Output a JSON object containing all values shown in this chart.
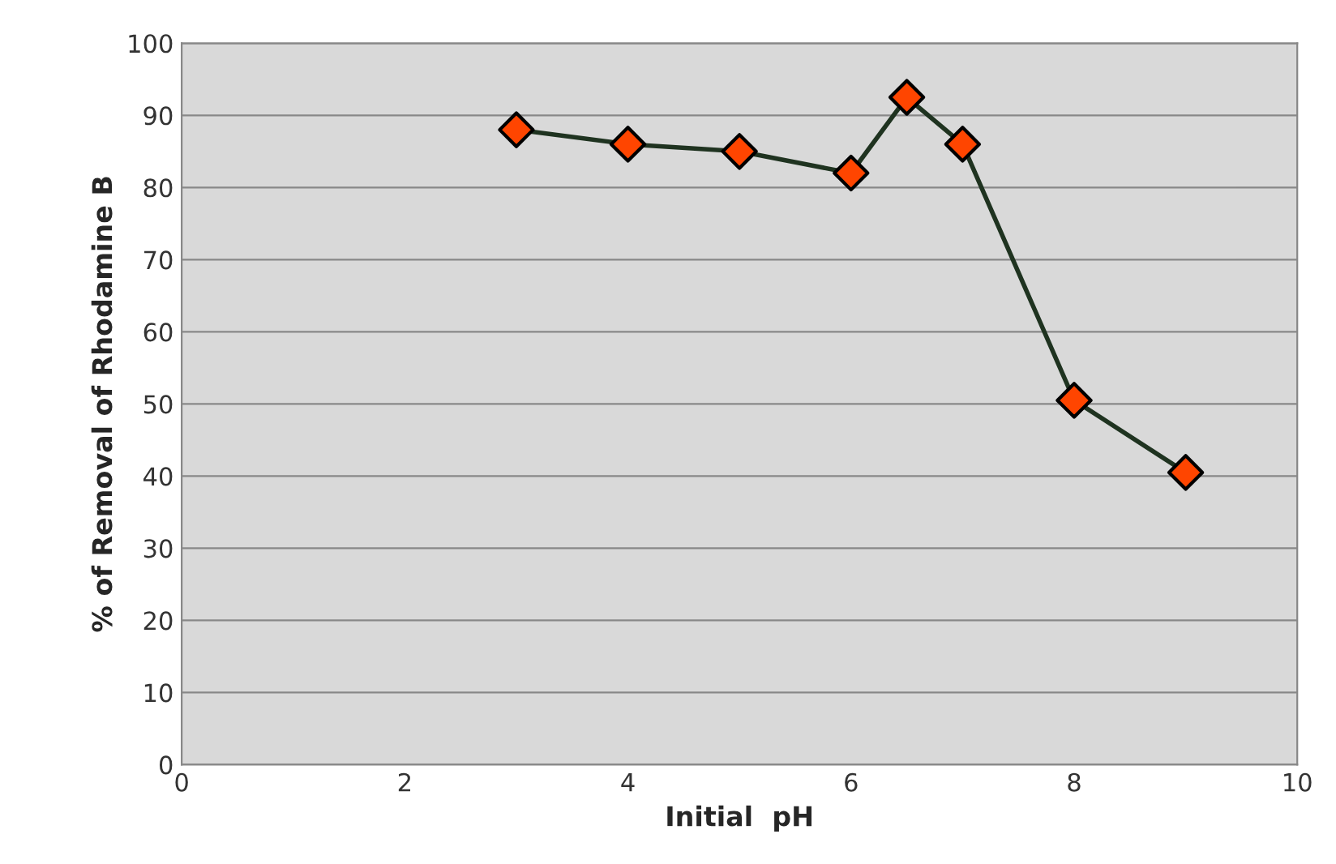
{
  "chart_data": {
    "type": "line",
    "xlabel": "Initial  pH",
    "ylabel": "% of Removal of Rhodamine B",
    "x": [
      3,
      4,
      5,
      6,
      6.5,
      7,
      8,
      9
    ],
    "series": [
      {
        "color": "#1f3320",
        "values": [
          88,
          86,
          85,
          82,
          92.5,
          86,
          50.5,
          40.5
        ]
      }
    ],
    "xlim": [
      0,
      10
    ],
    "xticks": [
      0,
      2,
      4,
      6,
      8,
      10
    ],
    "ylim": [
      0,
      100
    ],
    "yticks": [
      0,
      10,
      20,
      30,
      40,
      50,
      60,
      70,
      80,
      90,
      100
    ],
    "grid": "y",
    "marker": "diamond",
    "line_style": "solid"
  }
}
